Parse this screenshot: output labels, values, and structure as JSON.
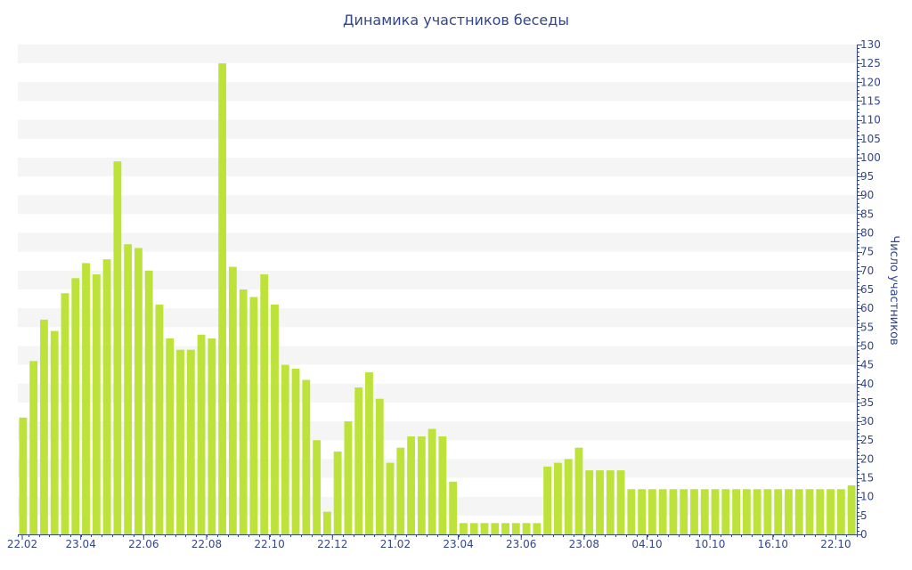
{
  "chart_data": {
    "type": "bar",
    "title": "Динамика участников беседы",
    "ylabel": "Число участников",
    "xlabel": "",
    "ylim": [
      0,
      130
    ],
    "yticks": [
      0,
      5,
      10,
      15,
      20,
      25,
      30,
      35,
      40,
      45,
      50,
      55,
      60,
      65,
      70,
      75,
      80,
      85,
      90,
      95,
      100,
      105,
      110,
      115,
      120,
      125,
      130
    ],
    "y_axis_position": "right",
    "grid": "alternating horizontal bands",
    "xtick_labels": [
      {
        "index": 0,
        "label": "22.02"
      },
      {
        "index": 6,
        "label": "23.04"
      },
      {
        "index": 12,
        "label": "22.06"
      },
      {
        "index": 18,
        "label": "22.08"
      },
      {
        "index": 24,
        "label": "22.10"
      },
      {
        "index": 30,
        "label": "22.12"
      },
      {
        "index": 36,
        "label": "21.02"
      },
      {
        "index": 42,
        "label": "23.04"
      },
      {
        "index": 48,
        "label": "23.06"
      },
      {
        "index": 54,
        "label": "23.08"
      },
      {
        "index": 60,
        "label": "04.10"
      },
      {
        "index": 66,
        "label": "10.10"
      },
      {
        "index": 72,
        "label": "16.10"
      },
      {
        "index": 78,
        "label": "22.10"
      }
    ],
    "values": [
      31,
      46,
      57,
      54,
      64,
      68,
      72,
      69,
      73,
      99,
      77,
      76,
      70,
      61,
      52,
      49,
      49,
      53,
      52,
      125,
      71,
      65,
      63,
      69,
      61,
      45,
      44,
      41,
      25,
      6,
      22,
      30,
      39,
      43,
      36,
      19,
      23,
      26,
      26,
      28,
      26,
      14,
      3,
      3,
      3,
      3,
      3,
      3,
      3,
      3,
      18,
      19,
      20,
      23,
      17,
      17,
      17,
      17,
      12,
      12,
      12,
      12,
      12,
      12,
      12,
      12,
      12,
      12,
      12,
      12,
      12,
      12,
      12,
      12,
      12,
      12,
      12,
      12,
      12,
      13
    ],
    "colors": {
      "bar": "#bde33a",
      "axis": "#33468a",
      "band": "#f5f5f5"
    }
  }
}
